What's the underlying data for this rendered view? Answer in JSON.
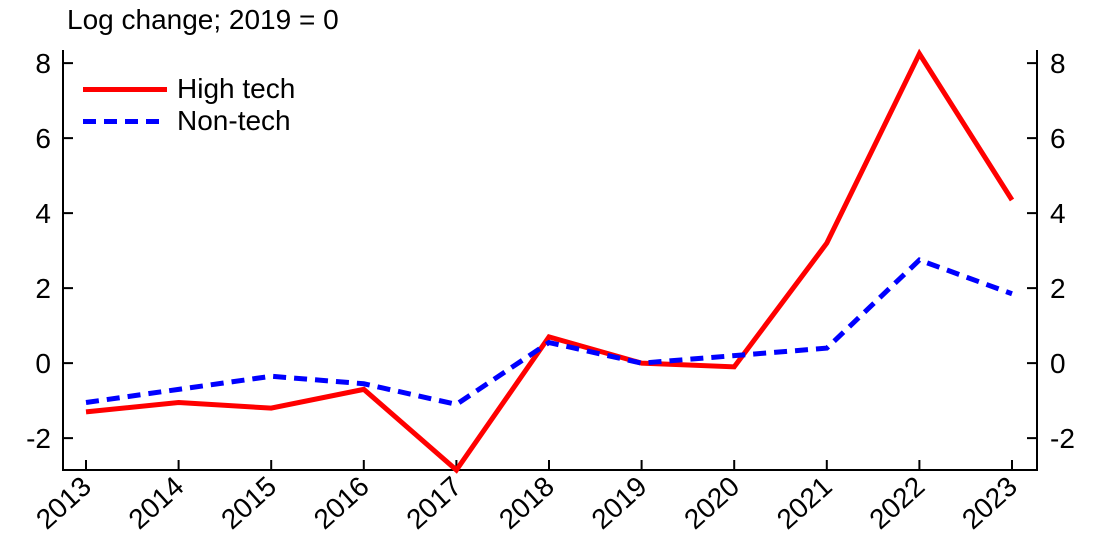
{
  "chart_data": {
    "type": "line",
    "title": "Log change; 2019 = 0",
    "x": [
      2013,
      2014,
      2015,
      2016,
      2017,
      2018,
      2019,
      2020,
      2021,
      2022,
      2023
    ],
    "series": [
      {
        "name": "High tech",
        "color": "#ff0000",
        "line_style": "solid",
        "line_width": 5,
        "values": [
          -1.3,
          -1.05,
          -1.2,
          -0.7,
          -2.85,
          0.7,
          0,
          -0.1,
          3.2,
          8.25,
          4.35
        ]
      },
      {
        "name": "Non-tech",
        "color": "#0000ff",
        "line_style": "dashed",
        "line_width": 5,
        "values": [
          -1.05,
          -0.7,
          -0.35,
          -0.55,
          -1.1,
          0.55,
          0,
          0.2,
          0.4,
          2.75,
          1.85
        ]
      }
    ],
    "xlabel": "",
    "ylabel": "",
    "ylim": [
      -2.85,
      8.35
    ],
    "yticks": [
      -2,
      0,
      2,
      4,
      6,
      8
    ],
    "y_axis_sides": [
      "left",
      "right"
    ],
    "x_tick_rotation_deg": 42,
    "grid": false,
    "legend_position": "top-left",
    "axis_color": "#000000",
    "text_color": "#000000",
    "background_color": "#ffffff"
  }
}
